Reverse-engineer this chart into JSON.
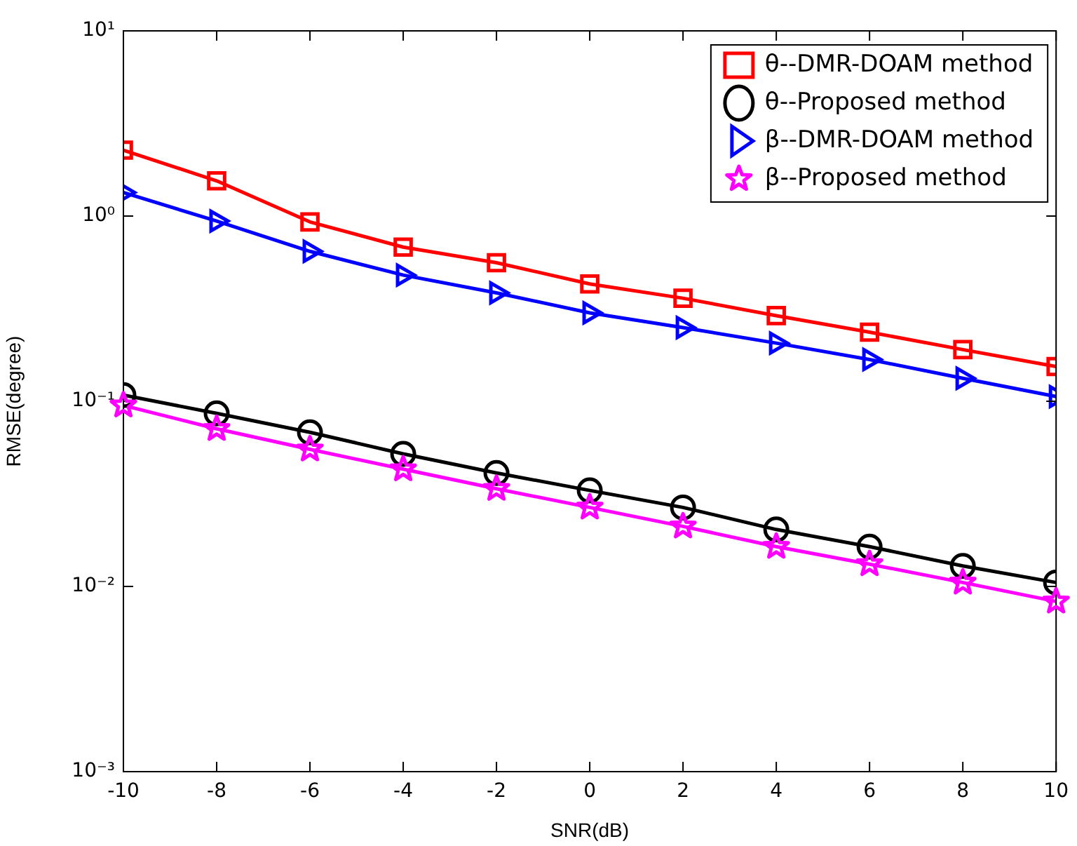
{
  "chart_data": {
    "type": "line",
    "xlabel": "SNR(dB)",
    "ylabel": "RMSE(degree)",
    "log": "y",
    "x": [
      -10,
      -8,
      -6,
      -4,
      -2,
      0,
      2,
      4,
      6,
      8,
      10
    ],
    "xlim": [
      -10,
      10
    ],
    "xticks": [
      -10,
      -8,
      -6,
      -4,
      -2,
      0,
      2,
      4,
      6,
      8,
      10
    ],
    "ylim": [
      0.001,
      10
    ],
    "yticks": [
      {
        "value": 0.001,
        "label": "10⁻³"
      },
      {
        "value": 0.01,
        "label": "10⁻²"
      },
      {
        "value": 0.1,
        "label": "10⁻¹"
      },
      {
        "value": 1,
        "label": "10⁰"
      },
      {
        "value": 10,
        "label": "10¹"
      }
    ],
    "grid": false,
    "legend": "top right",
    "line_style": "solid",
    "series": [
      {
        "name": "θ--DMR-DOAM method",
        "color": "#ff0000",
        "marker": "square",
        "values": [
          2.27,
          1.55,
          0.93,
          0.68,
          0.56,
          0.43,
          0.36,
          0.29,
          0.236,
          0.19,
          0.154
        ]
      },
      {
        "name": "θ--Proposed method",
        "color": "#000000",
        "marker": "circle",
        "values": [
          0.108,
          0.086,
          0.068,
          0.052,
          0.041,
          0.033,
          0.0267,
          0.0203,
          0.0164,
          0.0129,
          0.0105
        ]
      },
      {
        "name": "β--DMR-DOAM method",
        "color": "#0000ff",
        "marker": "triangle",
        "values": [
          1.34,
          0.94,
          0.645,
          0.48,
          0.385,
          0.3,
          0.25,
          0.206,
          0.168,
          0.133,
          0.106
        ]
      },
      {
        "name": "β--Proposed method",
        "color": "#ff00ff",
        "marker": "star",
        "values": [
          0.095,
          0.071,
          0.055,
          0.043,
          0.0337,
          0.0267,
          0.0211,
          0.0164,
          0.0132,
          0.0105,
          0.0083
        ]
      }
    ]
  }
}
